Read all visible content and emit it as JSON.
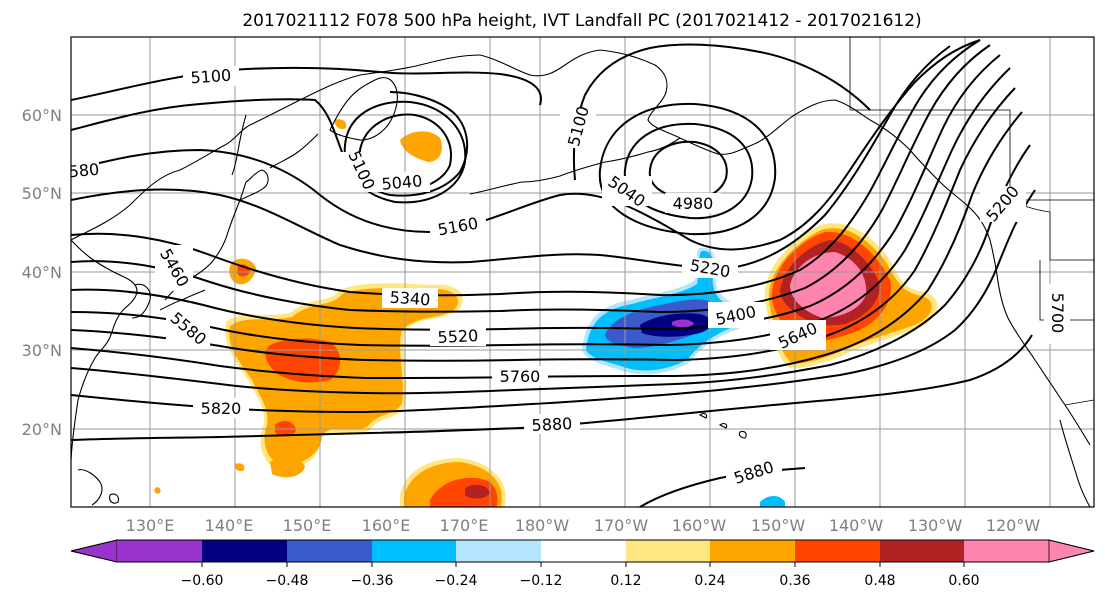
{
  "title": "2017021112 F078 500 hPa height, IVT Landfall PC (2017021412 - 2017021612)",
  "axes": {
    "lat_labels": [
      "60°N",
      "50°N",
      "40°N",
      "30°N",
      "20°N"
    ],
    "lon_labels": [
      "130°E",
      "140°E",
      "150°E",
      "160°E",
      "170°E",
      "180°W",
      "170°W",
      "160°W",
      "150°W",
      "140°W",
      "130°W",
      "120°W"
    ]
  },
  "contour_labels": [
    "5100",
    "5100",
    "5100",
    "5040",
    "5040",
    "4980",
    "5160",
    "5220",
    "5340",
    "5460",
    "5520",
    "5580",
    "5640",
    "5400",
    "5760",
    "5820",
    "5880",
    "5880",
    "5200",
    "5700",
    "580"
  ],
  "colorbar": {
    "tick_labels": [
      "−0.60",
      "−0.48",
      "−0.36",
      "−0.24",
      "−0.12",
      "0.12",
      "0.24",
      "0.36",
      "0.48",
      "0.60"
    ],
    "colors": [
      "#9933CC",
      "#000080",
      "#3A5BC9",
      "#00BFFF",
      "#B3E5FF",
      "#FFFFFF",
      "#FFE680",
      "#FFA500",
      "#FF4500",
      "#B22222",
      "#FF85B0"
    ]
  },
  "shading_colors": {
    "orange_light": "#FFE680",
    "orange": "#FFA500",
    "red_orange": "#FF4500",
    "dark_red": "#B22222",
    "pink": "#FF85B0",
    "light_blue": "#B3E5FF",
    "sky_blue": "#00BFFF",
    "blue": "#3A5BC9",
    "navy": "#000080",
    "purple": "#9933CC"
  }
}
